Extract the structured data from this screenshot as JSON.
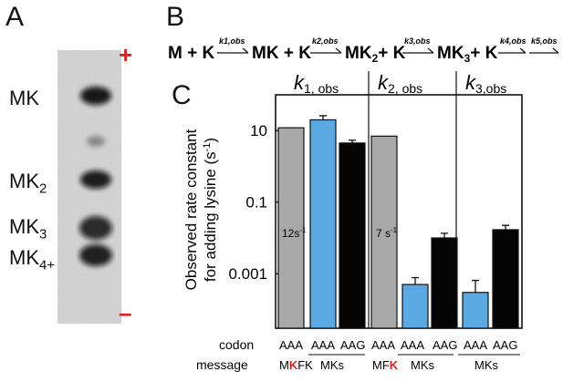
{
  "panel_a": {
    "letter": "A",
    "plus": "+",
    "minus": "–",
    "bands": [
      "MK",
      "MK2",
      "MK3",
      "MK4+"
    ],
    "band_labels": {
      "mk": {
        "base": "MK",
        "sub": ""
      },
      "mk2": {
        "base": "MK",
        "sub": "2"
      },
      "mk3": {
        "base": "MK",
        "sub": "3"
      },
      "mk4": {
        "base": "MK",
        "sub": "4+"
      }
    }
  },
  "panel_b": {
    "letter": "B",
    "scheme": {
      "s0": "M + K",
      "k1": "k1,obs",
      "s1": "MK + K",
      "k2": "k2,obs",
      "s2a": "MK",
      "s2sub": "2",
      "s2b": "+ K",
      "k3": "k3,obs",
      "s3a": "MK",
      "s3sub": "3",
      "s3b": "+ K",
      "k4": "k4,obs",
      "k5": "k5,obs"
    }
  },
  "panel_c": {
    "letter": "C",
    "header": {
      "k1": {
        "k": "k",
        "sub": "1, obs"
      },
      "k2": {
        "k": "k",
        "sub": "2, obs"
      },
      "k3": {
        "k": "k",
        "sub": "3,obs"
      }
    },
    "ylabel_line1": "Observed rate constant",
    "ylabel_line2": "for adding lysine (s",
    "ylabel_exp": "-1",
    "ylabel_close": ")",
    "inbar_1": "12s",
    "inbar_1_exp": "-1",
    "inbar_2": "7 s",
    "inbar_2_exp": "-1",
    "codon_row_label": "codon",
    "message_row_label": "message",
    "codons": [
      "AAA",
      "AAA",
      "AAG",
      "AAA",
      "AAA",
      "AAG",
      "AAA",
      "AAG"
    ],
    "messages": {
      "m1": {
        "a": "M",
        "b": "K",
        "c": "FK"
      },
      "m2": "MKs",
      "m3": {
        "a": "MF",
        "b": "K"
      },
      "m4": "MKs",
      "m5": "MKs"
    },
    "colors": {
      "gray": "#a8a8a8",
      "blue": "#5aa9e3",
      "black": "#050505",
      "red": "#e02020"
    }
  },
  "chart_data": {
    "type": "bar",
    "y_scale": "log",
    "yticks": [
      "10",
      "0.1",
      "0.001"
    ],
    "ylim": [
      3e-05,
      100
    ],
    "groups": [
      "k1, obs",
      "k2, obs",
      "k3,obs"
    ],
    "categories": [
      "AAA MKFK",
      "AAA MKs",
      "AAG MKs",
      "AAA MFK",
      "AAA MKs",
      "AAG MKs",
      "AAA MKs",
      "AAG MKs"
    ],
    "values": [
      12,
      20,
      4.5,
      7,
      0.0005,
      0.01,
      0.0003,
      0.017
    ],
    "errors": [
      0,
      6,
      0.9,
      0,
      0.00028,
      0.0035,
      0.00035,
      0.0055
    ],
    "bar_colors": [
      "gray",
      "blue",
      "black",
      "gray",
      "blue",
      "black",
      "blue",
      "black"
    ],
    "ylabel": "Observed rate constant for adding lysine (s-1)"
  }
}
